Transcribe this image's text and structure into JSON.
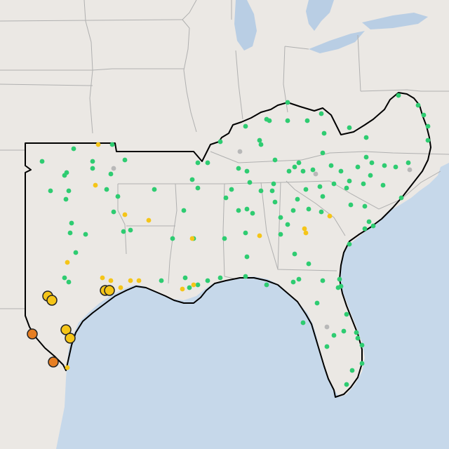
{
  "map": {
    "colors": {
      "land": "#ebe8e4",
      "water": "#c6d8ea",
      "great_lakes": "#b9cee4",
      "state_border": "#b0b0b0",
      "region_outline": "#000000",
      "good": "#2ecc71",
      "moderate": "#f5c518",
      "usg": "#e67e22",
      "no_data": "#b8b8b8"
    },
    "markers": {
      "good": "green-monitor-dot",
      "moderate": "yellow-monitor-dot",
      "usg": "orange-monitor-dot",
      "no_data": "gray-monitor-dot"
    }
  }
}
